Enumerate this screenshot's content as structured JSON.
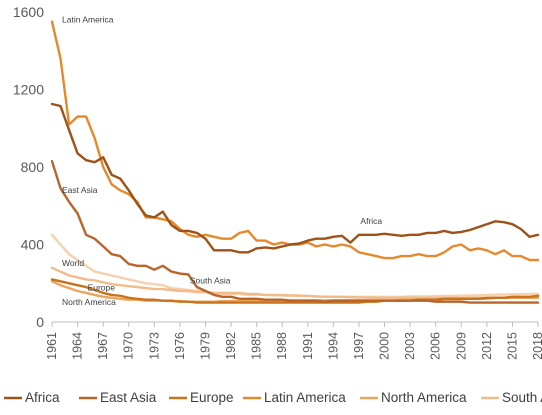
{
  "chart_data": {
    "type": "line",
    "title": "",
    "xlabel": "",
    "ylabel": "",
    "ylim": [
      0,
      1600
    ],
    "yticks": [
      0,
      400,
      800,
      1200,
      1600
    ],
    "xticks": [
      1961,
      1964,
      1967,
      1970,
      1973,
      1976,
      1979,
      1982,
      1985,
      1988,
      1991,
      1994,
      1997,
      2000,
      2003,
      2006,
      2009,
      2012,
      2015,
      2018
    ],
    "grid": false,
    "legend_position": "bottom",
    "x": [
      1961,
      1962,
      1963,
      1964,
      1965,
      1966,
      1967,
      1968,
      1969,
      1970,
      1971,
      1972,
      1973,
      1974,
      1975,
      1976,
      1977,
      1978,
      1979,
      1980,
      1981,
      1982,
      1983,
      1984,
      1985,
      1986,
      1987,
      1988,
      1989,
      1990,
      1991,
      1992,
      1993,
      1994,
      1995,
      1996,
      1997,
      1998,
      1999,
      2000,
      2001,
      2002,
      2003,
      2004,
      2005,
      2006,
      2007,
      2008,
      2009,
      2010,
      2011,
      2012,
      2013,
      2014,
      2015,
      2016,
      2017,
      2018
    ],
    "series": [
      {
        "name": "Africa",
        "color": "#9e5218",
        "values": [
          1125,
          1115,
          990,
          870,
          835,
          825,
          850,
          760,
          740,
          680,
          610,
          550,
          540,
          570,
          500,
          470,
          470,
          460,
          430,
          370,
          370,
          370,
          360,
          360,
          380,
          385,
          380,
          390,
          400,
          405,
          420,
          430,
          430,
          440,
          445,
          410,
          450,
          450,
          450,
          455,
          450,
          445,
          450,
          450,
          460,
          460,
          470,
          460,
          465,
          475,
          490,
          505,
          520,
          515,
          505,
          480,
          440,
          450
        ]
      },
      {
        "name": "East Asia",
        "color": "#b9652a",
        "values": [
          830,
          690,
          620,
          560,
          450,
          430,
          390,
          350,
          340,
          300,
          290,
          290,
          270,
          290,
          260,
          250,
          245,
          180,
          160,
          140,
          130,
          130,
          120,
          120,
          120,
          115,
          115,
          115,
          110,
          110,
          110,
          110,
          105,
          110,
          110,
          110,
          110,
          110,
          110,
          110,
          110,
          110,
          110,
          110,
          110,
          105,
          105,
          105,
          105,
          100,
          100,
          100,
          100,
          100,
          100,
          100,
          100,
          100
        ]
      },
      {
        "name": "Europe",
        "color": "#c8731e",
        "values": [
          220,
          210,
          200,
          190,
          180,
          165,
          150,
          140,
          135,
          125,
          120,
          115,
          115,
          110,
          110,
          105,
          105,
          100,
          100,
          100,
          100,
          100,
          100,
          100,
          100,
          100,
          100,
          100,
          100,
          100,
          100,
          100,
          100,
          100,
          100,
          100,
          100,
          105,
          105,
          110,
          110,
          110,
          110,
          115,
          115,
          115,
          120,
          120,
          120,
          120,
          120,
          125,
          125,
          125,
          130,
          130,
          130,
          135
        ]
      },
      {
        "name": "Latin America",
        "color": "#e5892e",
        "values": [
          1550,
          1360,
          1020,
          1060,
          1060,
          950,
          800,
          710,
          680,
          660,
          620,
          540,
          540,
          530,
          520,
          480,
          450,
          440,
          450,
          440,
          430,
          430,
          460,
          470,
          420,
          420,
          400,
          410,
          400,
          400,
          410,
          390,
          400,
          390,
          400,
          390,
          360,
          350,
          340,
          330,
          330,
          340,
          340,
          350,
          340,
          340,
          360,
          390,
          400,
          370,
          380,
          370,
          350,
          370,
          340,
          340,
          320,
          320
        ]
      },
      {
        "name": "North America",
        "color": "#eea35c",
        "values": [
          210,
          190,
          175,
          160,
          150,
          140,
          130,
          125,
          120,
          115,
          115,
          110,
          110,
          110,
          108,
          108,
          105,
          105,
          105,
          105,
          108,
          108,
          108,
          110,
          110,
          110,
          110,
          110,
          112,
          112,
          112,
          112,
          112,
          112,
          112,
          112,
          112,
          112,
          112,
          112,
          112,
          115,
          115,
          115,
          115,
          115,
          118,
          118,
          118,
          120,
          120,
          120,
          125,
          125,
          125,
          125,
          125,
          125
        ]
      },
      {
        "name": "South Asia",
        "color": "#f2bb8a",
        "values": [
          280,
          260,
          240,
          230,
          220,
          215,
          205,
          195,
          190,
          185,
          180,
          175,
          170,
          170,
          165,
          160,
          160,
          155,
          155,
          150,
          150,
          150,
          150,
          145,
          145,
          140,
          140,
          140,
          138,
          136,
          134,
          132,
          130,
          130,
          130,
          128,
          126,
          126,
          125,
          125,
          125,
          125,
          125,
          125,
          125,
          125,
          125,
          125,
          125,
          125,
          125,
          125,
          126,
          126,
          127,
          128,
          128,
          128
        ]
      },
      {
        "name": "World",
        "color": "#f6d1ae",
        "values": [
          450,
          400,
          350,
          320,
          290,
          260,
          250,
          240,
          230,
          220,
          210,
          200,
          195,
          190,
          175,
          170,
          165,
          160,
          155,
          150,
          145,
          145,
          145,
          140,
          140,
          140,
          138,
          136,
          135,
          134,
          133,
          132,
          131,
          130,
          130,
          130,
          130,
          130,
          130,
          130,
          130,
          130,
          132,
          132,
          132,
          133,
          134,
          135,
          136,
          137,
          138,
          140,
          141,
          142,
          143,
          144,
          145,
          145
        ]
      }
    ],
    "annotations": [
      {
        "text": "Latin America",
        "x": 1961,
        "y": 1545
      },
      {
        "text": "East Asia",
        "x": 1961,
        "y": 665
      },
      {
        "text": "Africa",
        "x": 1996,
        "y": 505
      },
      {
        "text": "World",
        "x": 1961,
        "y": 290
      },
      {
        "text": "South Asia",
        "x": 1976,
        "y": 198
      },
      {
        "text": "Europe",
        "x": 1964,
        "y": 163
      },
      {
        "text": "North America",
        "x": 1961,
        "y": 88
      }
    ]
  }
}
